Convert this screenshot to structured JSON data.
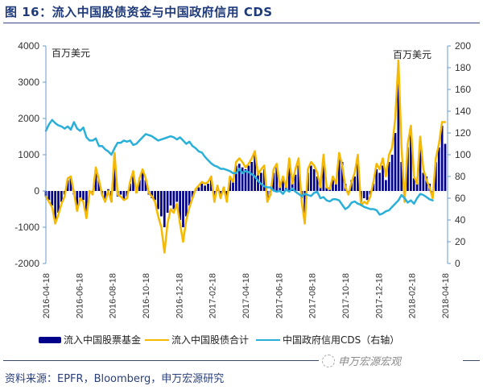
{
  "figure": {
    "title": "图 16：流入中国股债资金与中国政府信用 CDS",
    "source": "资料来源：EPFR，Bloomberg，申万宏源研究",
    "watermark": "申万宏源宏观"
  },
  "chart_data": {
    "type": "bar",
    "title": "图 16：流入中国股债资金与中国政府信用 CDS",
    "xlabel": "",
    "ylabel": "百万美元",
    "y2label": "百万美元",
    "ylim": [
      -2000,
      4000
    ],
    "y2lim": [
      0,
      200
    ],
    "yticks": [
      -2000,
      -1000,
      0,
      1000,
      2000,
      3000,
      4000
    ],
    "y2ticks": [
      0,
      20,
      40,
      60,
      80,
      100,
      120,
      140,
      160,
      180,
      200
    ],
    "x_tick_labels": [
      "2016-04-18",
      "2016-06-18",
      "2016-08-18",
      "2016-10-18",
      "2016-12-18",
      "2017-02-18",
      "2017-04-18",
      "2017-06-18",
      "2017-08-18",
      "2017-10-18",
      "2017-12-18",
      "2018-02-18",
      "2018-04-18"
    ],
    "grid": false,
    "legend_position": "bottom",
    "series": [
      {
        "name": "流入中国股票基金",
        "type": "bar",
        "axis": "left",
        "color": "#00008b",
        "values": [
          -150,
          -250,
          -400,
          -850,
          -600,
          -300,
          -100,
          300,
          350,
          -100,
          -500,
          -200,
          -250,
          -700,
          -50,
          -100,
          600,
          300,
          -100,
          -250,
          50,
          -300,
          1000,
          -150,
          -100,
          -250,
          -150,
          200,
          500,
          -50,
          300,
          550,
          300,
          -100,
          -200,
          -250,
          -500,
          -700,
          -1000,
          -600,
          -400,
          -500,
          -300,
          -800,
          -1000,
          -700,
          -400,
          -200,
          50,
          100,
          200,
          150,
          200,
          300,
          -200,
          100,
          -150,
          100,
          -200,
          300,
          300,
          700,
          750,
          650,
          600,
          700,
          800,
          1000,
          550,
          500,
          600,
          -200,
          -100,
          500,
          650,
          200,
          300,
          150,
          800,
          300,
          450,
          700,
          -200,
          -700,
          500,
          700,
          600,
          400,
          200,
          900,
          100,
          100,
          400,
          300,
          900,
          800,
          200,
          -50,
          300,
          400,
          800,
          -300,
          -200,
          -250,
          -100,
          200,
          600,
          500,
          700,
          300,
          800,
          1000,
          1600,
          3000,
          800,
          -200,
          1200,
          1700,
          350,
          300,
          1300,
          500,
          400,
          200,
          -150,
          800,
          1200,
          1800,
          1300
        ]
      },
      {
        "name": "流入中国股债合计",
        "type": "line",
        "axis": "left",
        "color": "#f5b900",
        "values": [
          -150,
          -300,
          -450,
          -900,
          -650,
          -350,
          -150,
          350,
          400,
          -50,
          -550,
          -200,
          -300,
          -750,
          0,
          -100,
          650,
          300,
          -100,
          -300,
          0,
          -300,
          1050,
          -100,
          -150,
          -250,
          -200,
          250,
          550,
          -50,
          350,
          600,
          350,
          -50,
          -150,
          -300,
          -700,
          -1000,
          -1700,
          -900,
          -500,
          -600,
          -350,
          -900,
          -1400,
          -800,
          -450,
          -200,
          50,
          150,
          250,
          200,
          250,
          400,
          -300,
          150,
          -200,
          100,
          -300,
          400,
          250,
          800,
          900,
          800,
          650,
          750,
          900,
          1100,
          450,
          600,
          700,
          -300,
          -100,
          600,
          750,
          100,
          400,
          100,
          900,
          200,
          600,
          900,
          -300,
          -900,
          600,
          800,
          700,
          500,
          100,
          1000,
          100,
          50,
          400,
          200,
          1050,
          700,
          100,
          -100,
          250,
          500,
          1000,
          -400,
          -300,
          -350,
          -150,
          250,
          750,
          600,
          900,
          400,
          1000,
          1200,
          2000,
          3600,
          1200,
          -300,
          1300,
          1800,
          400,
          200,
          1500,
          600,
          300,
          100,
          -200,
          900,
          1300,
          1900,
          1900
        ]
      },
      {
        "name": "中国政府信用CDS（右轴）",
        "type": "line",
        "axis": "right",
        "color": "#2ab0d8",
        "values": [
          122,
          128,
          132,
          129,
          127,
          126,
          124,
          126,
          123,
          130,
          124,
          122,
          125,
          116,
          113,
          113,
          115,
          108,
          108,
          105,
          103,
          100,
          106,
          111,
          111,
          113,
          112,
          113,
          109,
          110,
          113,
          116,
          119,
          118,
          117,
          115,
          113,
          114,
          115,
          116,
          117,
          116,
          114,
          116,
          113,
          110,
          112,
          108,
          106,
          103,
          102,
          98,
          95,
          92,
          90,
          89,
          87,
          87,
          86,
          85,
          83,
          83,
          87,
          83,
          85,
          84,
          82,
          80,
          76,
          73,
          71,
          70,
          70,
          67,
          66,
          67,
          64,
          68,
          66,
          69,
          66,
          64,
          62,
          64,
          63,
          62,
          65,
          66,
          60,
          61,
          58,
          57,
          59,
          59,
          58,
          54,
          50,
          52,
          56,
          57,
          55,
          54,
          52,
          51,
          50,
          50,
          49,
          45,
          46,
          48,
          49,
          52,
          55,
          58,
          63,
          60,
          56,
          58,
          55,
          60,
          64,
          63,
          61,
          59,
          58
        ]
      }
    ]
  },
  "legend": {
    "items": [
      {
        "label": "流入中国股票基金",
        "kind": "bar",
        "color": "#00008b"
      },
      {
        "label": "流入中国股债合计",
        "kind": "line",
        "color": "#f5b900"
      },
      {
        "label": "中国政府信用CDS（右轴）",
        "kind": "line",
        "color": "#2ab0d8"
      }
    ]
  },
  "axes": {
    "left_unit": "百万美元",
    "right_unit": "百万美元",
    "axis_color": "#6a9ac8"
  }
}
